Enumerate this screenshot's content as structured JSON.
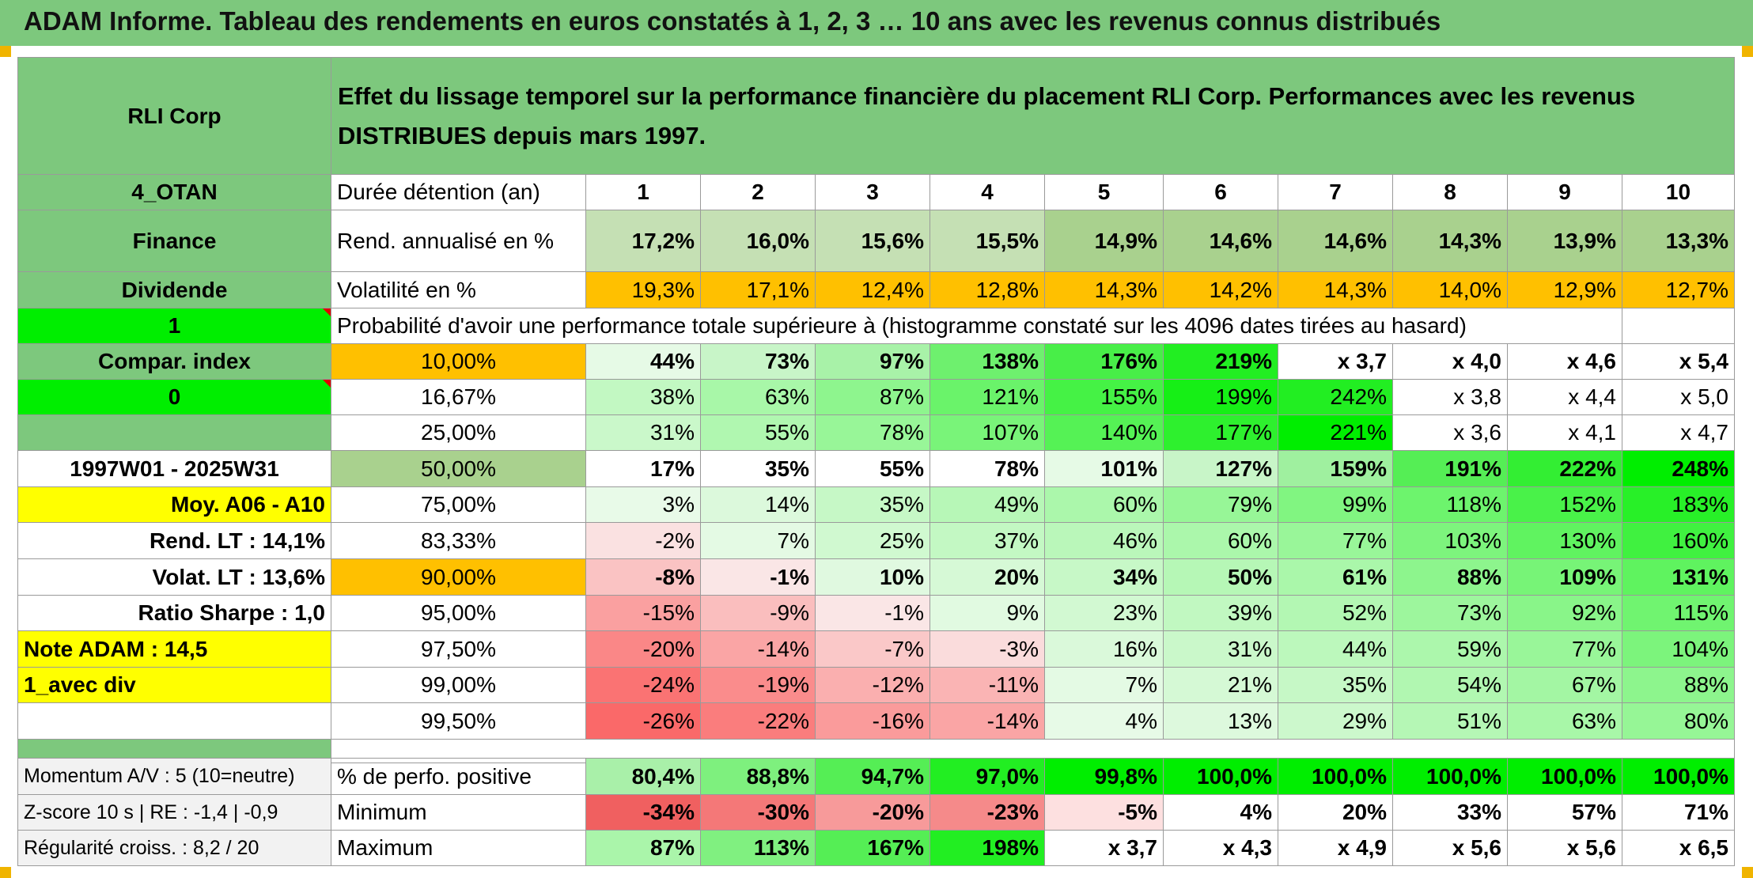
{
  "title": "ADAM Informe. Tableau des rendements en euros constatés à 1, 2, 3 … 10 ans avec les revenus connus distribués",
  "header": {
    "company": "RLI Corp",
    "description": "Effet du lissage temporel sur la performance financière du placement RLI Corp. Performances avec les revenus DISTRIBUES depuis mars 1997."
  },
  "side": {
    "code": "4_OTAN",
    "sector": "Finance",
    "type": "Dividende",
    "selector1": "1",
    "compar_label": "Compar. index",
    "selector2": "0",
    "period": "1997W01 - 2025W31",
    "moy": "Moy. A06 - A10",
    "rend_lt": "Rend. LT :   14,1%",
    "volat_lt": "Volat. LT :   13,6%",
    "sharpe": "Ratio Sharpe :    1,0",
    "note": "Note ADAM : 14,5",
    "avec_div": "1_avec div"
  },
  "years_label": "Durée détention (an)",
  "years": [
    "1",
    "2",
    "3",
    "4",
    "5",
    "6",
    "7",
    "8",
    "9",
    "10"
  ],
  "rend_label": "Rend. annualisé en %",
  "rend": [
    "17,2%",
    "16,0%",
    "15,6%",
    "15,5%",
    "14,9%",
    "14,6%",
    "14,6%",
    "14,3%",
    "13,9%",
    "13,3%"
  ],
  "vol_label": "Volatilité en %",
  "vol": [
    "19,3%",
    "17,1%",
    "12,4%",
    "12,8%",
    "14,3%",
    "14,2%",
    "14,3%",
    "14,0%",
    "12,9%",
    "12,7%"
  ],
  "prob_label": "Probabilité d'avoir une performance totale supérieure à (histogramme constaté sur les 4096 dates tirées au hasard)",
  "prob_rows": [
    {
      "pct": "10,00%",
      "vals": [
        "44%",
        "73%",
        "97%",
        "138%",
        "176%",
        "219%",
        "x 3,7",
        "x 4,0",
        "x 4,6",
        "x 5,4"
      ]
    },
    {
      "pct": "16,67%",
      "vals": [
        "38%",
        "63%",
        "87%",
        "121%",
        "155%",
        "199%",
        "242%",
        "x 3,8",
        "x 4,4",
        "x 5,0"
      ]
    },
    {
      "pct": "25,00%",
      "vals": [
        "31%",
        "55%",
        "78%",
        "107%",
        "140%",
        "177%",
        "221%",
        "x 3,6",
        "x 4,1",
        "x 4,7"
      ]
    },
    {
      "pct": "50,00%",
      "vals": [
        "17%",
        "35%",
        "55%",
        "78%",
        "101%",
        "127%",
        "159%",
        "191%",
        "222%",
        "248%"
      ]
    },
    {
      "pct": "75,00%",
      "vals": [
        "3%",
        "14%",
        "35%",
        "49%",
        "60%",
        "79%",
        "99%",
        "118%",
        "152%",
        "183%"
      ]
    },
    {
      "pct": "83,33%",
      "vals": [
        "-2%",
        "7%",
        "25%",
        "37%",
        "46%",
        "60%",
        "77%",
        "103%",
        "130%",
        "160%"
      ]
    },
    {
      "pct": "90,00%",
      "vals": [
        "-8%",
        "-1%",
        "10%",
        "20%",
        "34%",
        "50%",
        "61%",
        "88%",
        "109%",
        "131%"
      ]
    },
    {
      "pct": "95,00%",
      "vals": [
        "-15%",
        "-9%",
        "-1%",
        "9%",
        "23%",
        "39%",
        "52%",
        "73%",
        "92%",
        "115%"
      ]
    },
    {
      "pct": "97,50%",
      "vals": [
        "-20%",
        "-14%",
        "-7%",
        "-3%",
        "16%",
        "31%",
        "44%",
        "59%",
        "77%",
        "104%"
      ]
    },
    {
      "pct": "99,00%",
      "vals": [
        "-24%",
        "-19%",
        "-12%",
        "-11%",
        "7%",
        "21%",
        "35%",
        "54%",
        "67%",
        "88%"
      ]
    },
    {
      "pct": "99,50%",
      "vals": [
        "-26%",
        "-22%",
        "-16%",
        "-14%",
        "4%",
        "13%",
        "29%",
        "51%",
        "63%",
        "80%"
      ]
    }
  ],
  "bottom": {
    "momentum": "Momentum A/V : 5 (10=neutre)",
    "zscore": "Z-score 10 s | RE : -1,4 | -0,9",
    "regularite": "Régularité croiss. : 8,2 / 20",
    "pos_label": "% de perfo. positive",
    "pos": [
      "80,4%",
      "88,8%",
      "94,7%",
      "97,0%",
      "99,8%",
      "100,0%",
      "100,0%",
      "100,0%",
      "100,0%",
      "100,0%"
    ],
    "min_label": "Minimum",
    "min": [
      "-34%",
      "-30%",
      "-20%",
      "-23%",
      "-5%",
      "4%",
      "20%",
      "33%",
      "57%",
      "71%"
    ],
    "max_label": "Maximum",
    "max": [
      "87%",
      "113%",
      "167%",
      "198%",
      "x 3,7",
      "x 4,3",
      "x 4,9",
      "x 5,6",
      "x 5,6",
      "x 6,5"
    ]
  },
  "colors": {
    "header_green": "#7dc87d",
    "bright_green": "#00ee00",
    "yellow": "#ffff00",
    "orange": "#ffc000",
    "red_text": "#e00000"
  }
}
